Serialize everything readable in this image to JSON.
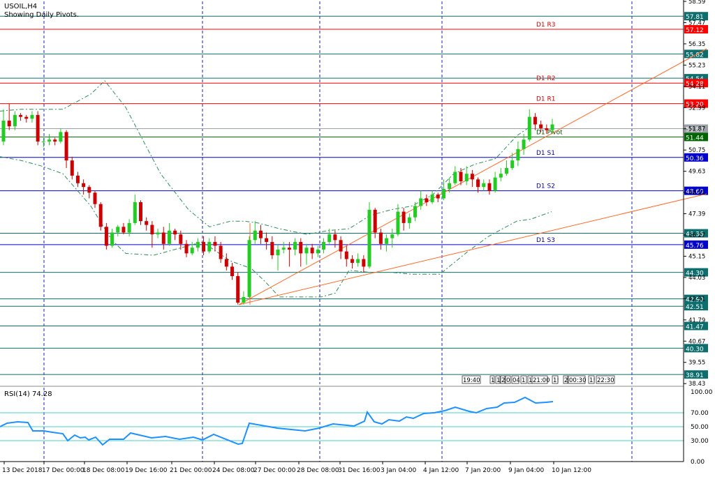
{
  "header": {
    "symbol": "USOIL,H4",
    "subtitle": "Showing Daily Pivots."
  },
  "colors": {
    "bull": "#22cc22",
    "bear": "#cc0000",
    "resistance": "#ff0000",
    "support": "#0000cc",
    "level": "#0e6e6e",
    "trend": "#ff6a2a",
    "band": "#2e8b57",
    "rsi": "#1e90ff",
    "pivot": "#006400",
    "grid": "#1d1dbf"
  },
  "chart_data": {
    "type": "candlestick",
    "ylim": [
      38.4,
      58.59
    ],
    "y_ticks": [
      "58.59",
      "57.47",
      "56.35",
      "55.23",
      "54.11",
      "52.99",
      "51.87",
      "50.75",
      "49.63",
      "48.51",
      "47.39",
      "46.27",
      "45.15",
      "44.03",
      "42.91",
      "41.79",
      "40.67",
      "39.55",
      "38.43"
    ],
    "x_labels": [
      "13 Dec 2018",
      "17 Dec 00:00",
      "18 Dec 08:00",
      "19 Dec 16:00",
      "21 Dec 00:00",
      "24 Dec 08:00",
      "27 Dec 00:00",
      "28 Dec 08:00",
      "31 Dec 16:00",
      "3 Jan 04:00",
      "4 Jan 12:00",
      "7 Jan 20:00",
      "9 Jan 04:00",
      "10 Jan 12:00"
    ],
    "levels": [
      {
        "price": 57.81,
        "label": "57.81",
        "kind": "level"
      },
      {
        "price": 57.12,
        "label": "57.12",
        "kind": "resistance",
        "name": "D1 R3"
      },
      {
        "price": 55.82,
        "label": "55.82",
        "kind": "level"
      },
      {
        "price": 54.54,
        "label": "54.54",
        "kind": "level"
      },
      {
        "price": 54.28,
        "label": "54.28",
        "kind": "resistance",
        "name": "D1 R2"
      },
      {
        "price": 53.2,
        "label": "53.20",
        "kind": "resistance",
        "name": "D1 R1"
      },
      {
        "price": 51.88,
        "label": "51.88",
        "kind": "current"
      },
      {
        "price": 51.44,
        "label": "51.44",
        "kind": "pivot",
        "name": "D1 Pivot"
      },
      {
        "price": 50.36,
        "label": "50.36",
        "kind": "support",
        "name": "D1 S1"
      },
      {
        "price": 48.6,
        "label": "48.60",
        "kind": "support",
        "name": "D1 S2"
      },
      {
        "price": 46.36,
        "label": "46.36",
        "kind": "level"
      },
      {
        "price": 45.76,
        "label": "45.76",
        "kind": "support",
        "name": "D1 S3"
      },
      {
        "price": 44.3,
        "label": "44.30",
        "kind": "level"
      },
      {
        "price": 42.9,
        "label": "42.90",
        "kind": "level"
      },
      {
        "price": 42.51,
        "label": "42.51",
        "kind": "level"
      },
      {
        "price": 41.47,
        "label": "41.47",
        "kind": "level"
      },
      {
        "price": 40.3,
        "label": "40.30",
        "kind": "level"
      },
      {
        "price": 38.91,
        "label": "38.91",
        "kind": "level"
      }
    ],
    "candles": [
      [
        51.2,
        52.3,
        52.9,
        51.0
      ],
      [
        52.3,
        52.0,
        53.2,
        51.8
      ],
      [
        52.0,
        52.6,
        52.8,
        51.8
      ],
      [
        52.6,
        52.5,
        52.7,
        52.3
      ],
      [
        52.5,
        52.4,
        52.6,
        52.2
      ],
      [
        52.4,
        52.6,
        52.8,
        52.2
      ],
      [
        52.6,
        51.2,
        52.8,
        51.0
      ],
      [
        51.2,
        51.2,
        51.4,
        50.9
      ],
      [
        51.2,
        51.3,
        51.6,
        51.0
      ],
      [
        51.3,
        51.2,
        51.4,
        51.0
      ],
      [
        51.2,
        51.7,
        51.9,
        51.1
      ],
      [
        51.7,
        50.2,
        51.8,
        49.8
      ],
      [
        50.2,
        49.4,
        50.4,
        49.2
      ],
      [
        49.4,
        49.0,
        49.6,
        48.8
      ],
      [
        49.0,
        48.8,
        49.2,
        48.4
      ],
      [
        48.8,
        48.5,
        48.9,
        48.2
      ],
      [
        48.5,
        47.9,
        48.6,
        47.7
      ],
      [
        47.9,
        46.7,
        48.0,
        46.5
      ],
      [
        46.7,
        45.7,
        46.9,
        45.5
      ],
      [
        45.7,
        46.4,
        46.6,
        45.6
      ],
      [
        46.4,
        46.7,
        46.8,
        46.2
      ],
      [
        46.7,
        46.4,
        46.9,
        46.3
      ],
      [
        46.4,
        46.9,
        47.1,
        46.2
      ],
      [
        46.9,
        48.0,
        48.4,
        46.8
      ],
      [
        48.0,
        47.0,
        48.1,
        46.8
      ],
      [
        47.0,
        46.8,
        47.2,
        46.5
      ],
      [
        46.8,
        46.3,
        47.0,
        45.6
      ],
      [
        46.3,
        46.4,
        46.6,
        46.1
      ],
      [
        46.4,
        45.8,
        46.7,
        45.5
      ],
      [
        45.8,
        46.5,
        46.9,
        45.7
      ],
      [
        46.5,
        46.3,
        46.6,
        46.0
      ],
      [
        46.3,
        45.8,
        46.5,
        45.5
      ],
      [
        45.8,
        45.3,
        46.0,
        45.1
      ],
      [
        45.3,
        45.6,
        45.9,
        45.2
      ],
      [
        45.6,
        45.9,
        46.1,
        45.4
      ],
      [
        45.9,
        45.4,
        46.2,
        45.2
      ],
      [
        45.4,
        45.9,
        46.1,
        45.3
      ],
      [
        45.9,
        45.7,
        46.2,
        45.4
      ],
      [
        45.7,
        45.0,
        45.9,
        44.8
      ],
      [
        45.0,
        44.6,
        45.3,
        44.4
      ],
      [
        44.6,
        44.1,
        44.8,
        43.9
      ],
      [
        44.1,
        42.7,
        44.3,
        42.6
      ],
      [
        42.7,
        43.0,
        43.3,
        42.6
      ],
      [
        43.0,
        46.0,
        46.2,
        42.9
      ],
      [
        46.0,
        46.5,
        47.0,
        45.8
      ],
      [
        46.5,
        46.1,
        46.8,
        45.8
      ],
      [
        46.1,
        45.9,
        46.4,
        45.5
      ],
      [
        45.9,
        45.2,
        46.2,
        45.0
      ],
      [
        45.2,
        45.5,
        45.8,
        44.4
      ],
      [
        45.5,
        45.6,
        45.9,
        45.3
      ],
      [
        45.6,
        45.5,
        45.9,
        44.6
      ],
      [
        45.5,
        45.9,
        46.1,
        45.2
      ],
      [
        45.9,
        45.3,
        46.1,
        44.6
      ],
      [
        45.3,
        45.6,
        45.8,
        44.7
      ],
      [
        45.6,
        45.3,
        45.8,
        45.0
      ],
      [
        45.3,
        45.5,
        45.7,
        45.1
      ],
      [
        45.5,
        45.9,
        46.1,
        45.3
      ],
      [
        45.9,
        46.3,
        46.6,
        45.8
      ],
      [
        46.3,
        46.0,
        46.5,
        45.6
      ],
      [
        46.0,
        45.4,
        46.2,
        45.0
      ],
      [
        45.4,
        45.0,
        45.7,
        44.6
      ],
      [
        45.0,
        44.8,
        45.2,
        44.5
      ],
      [
        44.8,
        45.0,
        45.3,
        44.6
      ],
      [
        45.0,
        44.6,
        45.2,
        44.3
      ],
      [
        44.6,
        47.6,
        48.0,
        44.5
      ],
      [
        47.6,
        46.4,
        47.7,
        46.1
      ],
      [
        46.4,
        45.8,
        46.6,
        45.5
      ],
      [
        45.8,
        46.1,
        46.3,
        45.4
      ],
      [
        46.1,
        46.3,
        46.6,
        45.6
      ],
      [
        46.3,
        47.5,
        47.9,
        46.2
      ],
      [
        47.5,
        46.9,
        47.7,
        46.5
      ],
      [
        46.9,
        47.2,
        47.4,
        46.6
      ],
      [
        47.2,
        47.8,
        48.0,
        47.0
      ],
      [
        47.8,
        48.2,
        48.6,
        47.6
      ],
      [
        48.2,
        48.0,
        48.4,
        47.8
      ],
      [
        48.0,
        48.4,
        48.6,
        47.9
      ],
      [
        48.4,
        48.2,
        48.5,
        48.0
      ],
      [
        48.2,
        48.7,
        49.2,
        48.1
      ],
      [
        48.7,
        49.0,
        49.3,
        48.5
      ],
      [
        49.0,
        49.6,
        49.9,
        48.9
      ],
      [
        49.6,
        49.1,
        49.8,
        48.9
      ],
      [
        49.1,
        49.5,
        49.9,
        48.9
      ],
      [
        49.5,
        49.2,
        49.7,
        48.8
      ],
      [
        49.2,
        48.8,
        49.3,
        48.5
      ],
      [
        48.8,
        49.0,
        49.2,
        48.6
      ],
      [
        49.0,
        48.6,
        49.2,
        48.4
      ],
      [
        48.6,
        49.3,
        49.6,
        48.5
      ],
      [
        49.3,
        49.5,
        49.8,
        49.1
      ],
      [
        49.5,
        49.8,
        50.2,
        49.4
      ],
      [
        49.8,
        50.2,
        50.6,
        49.7
      ],
      [
        50.2,
        50.8,
        51.2,
        49.9
      ],
      [
        50.8,
        51.3,
        51.6,
        50.5
      ],
      [
        51.3,
        52.5,
        52.9,
        51.2
      ],
      [
        52.5,
        52.1,
        52.7,
        51.8
      ],
      [
        52.1,
        51.9,
        52.3,
        51.7
      ],
      [
        51.9,
        51.8,
        52.1,
        51.6
      ],
      [
        51.8,
        52.1,
        52.4,
        51.6
      ]
    ],
    "bands": {
      "upper": [
        [
          0,
          52.8
        ],
        [
          30,
          52.9
        ],
        [
          90,
          52.9
        ],
        [
          130,
          53.7
        ],
        [
          150,
          54.4
        ],
        [
          180,
          53.0
        ],
        [
          230,
          49.5
        ],
        [
          270,
          47.6
        ],
        [
          300,
          46.7
        ],
        [
          330,
          47.0
        ],
        [
          350,
          47.0
        ],
        [
          370,
          46.9
        ],
        [
          400,
          46.6
        ],
        [
          440,
          46.3
        ],
        [
          470,
          46.5
        ],
        [
          500,
          46.6
        ],
        [
          530,
          47.3
        ],
        [
          560,
          47.6
        ],
        [
          590,
          47.8
        ],
        [
          620,
          48.4
        ],
        [
          650,
          49.5
        ],
        [
          680,
          50.0
        ],
        [
          710,
          50.3
        ],
        [
          740,
          51.5
        ],
        [
          760,
          52.0
        ]
      ],
      "lower": [
        [
          0,
          50.4
        ],
        [
          30,
          50.2
        ],
        [
          60,
          49.9
        ],
        [
          90,
          49.5
        ],
        [
          130,
          47.8
        ],
        [
          160,
          46.0
        ],
        [
          180,
          45.3
        ],
        [
          220,
          45.2
        ],
        [
          260,
          45.6
        ],
        [
          290,
          45.9
        ],
        [
          330,
          44.9
        ],
        [
          360,
          44.5
        ],
        [
          380,
          43.8
        ],
        [
          400,
          43.0
        ],
        [
          440,
          43.0
        ],
        [
          460,
          43.0
        ],
        [
          480,
          43.2
        ],
        [
          500,
          44.4
        ],
        [
          530,
          44.3
        ],
        [
          560,
          44.3
        ],
        [
          590,
          44.2
        ],
        [
          630,
          44.2
        ],
        [
          650,
          44.8
        ],
        [
          670,
          45.4
        ],
        [
          700,
          46.2
        ],
        [
          720,
          46.6
        ],
        [
          740,
          47.0
        ],
        [
          760,
          47.1
        ],
        [
          790,
          47.5
        ]
      ]
    },
    "trendlines": [
      [
        [
          342,
          437
        ],
        [
          1012,
          70
        ]
      ],
      [
        [
          342,
          437
        ],
        [
          1012,
          278
        ]
      ],
      [
        [
          358,
          320
        ],
        [
          358,
          437
        ]
      ]
    ],
    "rsi": {
      "label": "RSI(14) 74.28",
      "ylim": [
        0,
        100
      ],
      "ticks": [
        "100.00",
        "70.00",
        "50.00",
        "30.00",
        "0.00"
      ],
      "levels": [
        70,
        50,
        30
      ],
      "values": [
        [
          0,
          50
        ],
        [
          10,
          55
        ],
        [
          25,
          57
        ],
        [
          40,
          56
        ],
        [
          47,
          44
        ],
        [
          63,
          44
        ],
        [
          75,
          42
        ],
        [
          90,
          40
        ],
        [
          97,
          30
        ],
        [
          107,
          38
        ],
        [
          115,
          34
        ],
        [
          122,
          35
        ],
        [
          127,
          31
        ],
        [
          137,
          35
        ],
        [
          147,
          24
        ],
        [
          157,
          32
        ],
        [
          177,
          32
        ],
        [
          187,
          41
        ],
        [
          217,
          34
        ],
        [
          237,
          36
        ],
        [
          257,
          32
        ],
        [
          277,
          35
        ],
        [
          290,
          31
        ],
        [
          306,
          39
        ],
        [
          341,
          25
        ],
        [
          347,
          26
        ],
        [
          357,
          55
        ],
        [
          397,
          48
        ],
        [
          437,
          44
        ],
        [
          457,
          48
        ],
        [
          477,
          54
        ],
        [
          507,
          51
        ],
        [
          522,
          58
        ],
        [
          526,
          71
        ],
        [
          536,
          57
        ],
        [
          547,
          54
        ],
        [
          557,
          60
        ],
        [
          572,
          58
        ],
        [
          582,
          64
        ],
        [
          592,
          62
        ],
        [
          607,
          69
        ],
        [
          622,
          70
        ],
        [
          637,
          73
        ],
        [
          652,
          78
        ],
        [
          672,
          72
        ],
        [
          682,
          70
        ],
        [
          697,
          76
        ],
        [
          712,
          78
        ],
        [
          722,
          84
        ],
        [
          737,
          85
        ],
        [
          752,
          92
        ],
        [
          767,
          84
        ],
        [
          782,
          85
        ],
        [
          792,
          86
        ]
      ]
    },
    "session_labels": [
      "19:40",
      "1",
      "1",
      "2",
      "0",
      "04:",
      "1",
      "1",
      "21:00",
      "1!",
      "2",
      "00:30",
      "1!",
      "22:30"
    ]
  }
}
